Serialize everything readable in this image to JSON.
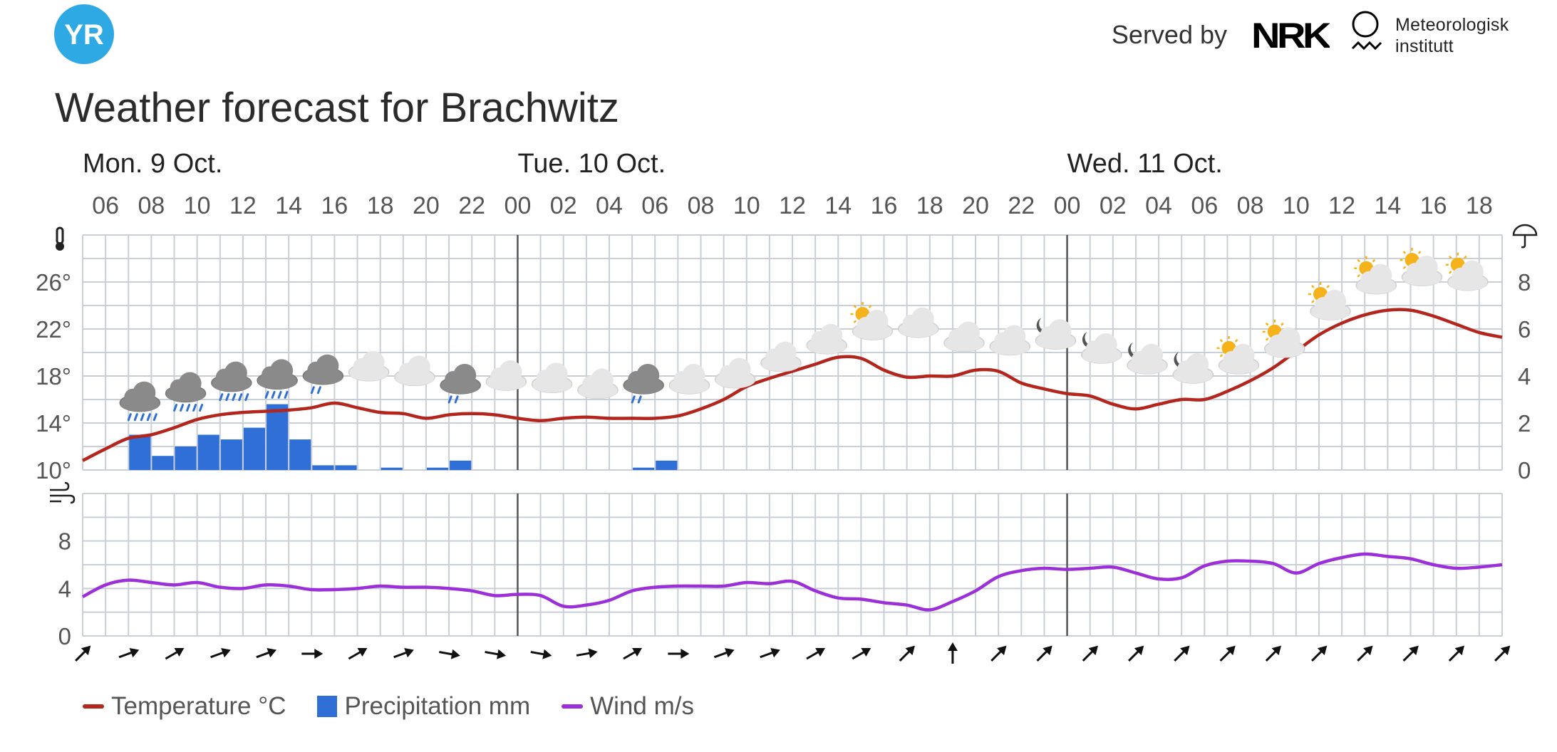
{
  "header": {
    "logo_text": "YR",
    "served_by": "Served by",
    "nrk_logo_text": "NRK",
    "met_line1": "Meteorologisk",
    "met_line2": "institutt",
    "title": "Weather forecast for Brachwitz"
  },
  "chart_data": {
    "type": "line",
    "title": "Weather forecast for Brachwitz",
    "days": [
      {
        "label": "Mon. 9 Oct.",
        "start_hour": 6
      },
      {
        "label": "Tue. 10 Oct.",
        "start_hour": 24
      },
      {
        "label": "Wed. 11 Oct.",
        "start_hour": 48
      }
    ],
    "x_hour_range": [
      5,
      67
    ],
    "x_tick_labels": [
      "06",
      "08",
      "10",
      "12",
      "14",
      "16",
      "18",
      "20",
      "22",
      "00",
      "02",
      "04",
      "06",
      "08",
      "10",
      "12",
      "14",
      "16",
      "18",
      "20",
      "22",
      "00",
      "02",
      "04",
      "06",
      "08",
      "10",
      "12",
      "14",
      "16",
      "18"
    ],
    "temperature": {
      "name": "Temperature °C",
      "color": "#b3261e",
      "ylim": [
        10,
        30
      ],
      "y_ticks": [
        "10°",
        "14°",
        "18°",
        "22°",
        "26°"
      ],
      "hours": [
        5,
        6,
        7,
        8,
        9,
        10,
        11,
        12,
        13,
        14,
        15,
        16,
        17,
        18,
        19,
        20,
        21,
        22,
        23,
        24,
        25,
        26,
        27,
        28,
        29,
        30,
        31,
        32,
        33,
        34,
        35,
        36,
        37,
        38,
        39,
        40,
        41,
        42,
        43,
        44,
        45,
        46,
        47,
        48,
        49,
        50,
        51,
        52,
        53,
        54,
        55,
        56,
        57,
        58,
        59,
        60,
        61,
        62,
        63,
        64,
        65,
        66,
        67
      ],
      "values": [
        10.8,
        11.8,
        12.7,
        13.0,
        13.6,
        14.3,
        14.7,
        14.9,
        15.0,
        15.1,
        15.3,
        15.7,
        15.3,
        14.9,
        14.8,
        14.4,
        14.7,
        14.8,
        14.7,
        14.4,
        14.2,
        14.4,
        14.5,
        14.4,
        14.4,
        14.4,
        14.6,
        15.2,
        16.0,
        17.1,
        17.8,
        18.4,
        19.0,
        19.6,
        19.5,
        18.5,
        17.9,
        18.0,
        18.0,
        18.5,
        18.4,
        17.4,
        16.9,
        16.5,
        16.3,
        15.6,
        15.2,
        15.6,
        16.0,
        16.0,
        16.7,
        17.6,
        18.7,
        20.1,
        21.5,
        22.5,
        23.2,
        23.6,
        23.6,
        23.1,
        22.4,
        21.7,
        21.3
      ]
    },
    "precipitation": {
      "name": "Precipitation mm",
      "color": "#2f6fd6",
      "ylim": [
        0,
        10
      ],
      "y_ticks": [
        "0",
        "2",
        "4",
        "6",
        "8"
      ],
      "bars": [
        {
          "hour": 7,
          "value": 1.5
        },
        {
          "hour": 8,
          "value": 0.6
        },
        {
          "hour": 9,
          "value": 1.0
        },
        {
          "hour": 10,
          "value": 1.5
        },
        {
          "hour": 11,
          "value": 1.3
        },
        {
          "hour": 12,
          "value": 1.8
        },
        {
          "hour": 13,
          "value": 2.8
        },
        {
          "hour": 14,
          "value": 1.3
        },
        {
          "hour": 15,
          "value": 0.2
        },
        {
          "hour": 16,
          "value": 0.2
        },
        {
          "hour": 18,
          "value": 0.1
        },
        {
          "hour": 20,
          "value": 0.1
        },
        {
          "hour": 21,
          "value": 0.4
        },
        {
          "hour": 29,
          "value": 0.1
        },
        {
          "hour": 30,
          "value": 0.4
        }
      ]
    },
    "wind": {
      "name": "Wind m/s",
      "color": "#9b2fd8",
      "ylim": [
        0,
        12
      ],
      "y_ticks": [
        "0",
        "4",
        "8"
      ],
      "hours": [
        5,
        6,
        7,
        8,
        9,
        10,
        11,
        12,
        13,
        14,
        15,
        16,
        17,
        18,
        19,
        20,
        21,
        22,
        23,
        24,
        25,
        26,
        27,
        28,
        29,
        30,
        31,
        32,
        33,
        34,
        35,
        36,
        37,
        38,
        39,
        40,
        41,
        42,
        43,
        44,
        45,
        46,
        47,
        48,
        49,
        50,
        51,
        52,
        53,
        54,
        55,
        56,
        57,
        58,
        59,
        60,
        61,
        62,
        63,
        64,
        65,
        66,
        67
      ],
      "values": [
        3.3,
        4.3,
        4.7,
        4.5,
        4.3,
        4.5,
        4.1,
        4.0,
        4.3,
        4.2,
        3.9,
        3.9,
        4.0,
        4.2,
        4.1,
        4.1,
        4.0,
        3.8,
        3.4,
        3.5,
        3.4,
        2.5,
        2.6,
        3.0,
        3.8,
        4.1,
        4.2,
        4.2,
        4.2,
        4.5,
        4.4,
        4.6,
        3.8,
        3.2,
        3.1,
        2.8,
        2.6,
        2.2,
        2.9,
        3.8,
        5.0,
        5.5,
        5.7,
        5.6,
        5.7,
        5.8,
        5.3,
        4.8,
        4.9,
        5.9,
        6.3,
        6.3,
        6.1,
        5.3,
        6.1,
        6.6,
        6.9,
        6.7,
        6.5,
        6.0,
        5.7,
        5.8,
        6.0
      ]
    },
    "wind_direction_deg": [
      45,
      70,
      60,
      70,
      70,
      90,
      60,
      70,
      100,
      100,
      100,
      80,
      60,
      90,
      70,
      70,
      60,
      60,
      45,
      0,
      45,
      45,
      45,
      45,
      45,
      45,
      45,
      45,
      45,
      45,
      45,
      45
    ],
    "weather_icons": [
      {
        "hour": 7,
        "temp": 16.2,
        "icon": "heavy-rain-icon"
      },
      {
        "hour": 9,
        "temp": 17.0,
        "icon": "heavy-rain-icon"
      },
      {
        "hour": 11,
        "temp": 17.9,
        "icon": "heavy-rain-icon"
      },
      {
        "hour": 13,
        "temp": 18.1,
        "icon": "rain-icon"
      },
      {
        "hour": 15,
        "temp": 18.5,
        "icon": "light-rain-icon"
      },
      {
        "hour": 17,
        "temp": 18.8,
        "icon": "cloudy-icon"
      },
      {
        "hour": 19,
        "temp": 18.4,
        "icon": "cloudy-icon"
      },
      {
        "hour": 21,
        "temp": 17.7,
        "icon": "light-rain-icon"
      },
      {
        "hour": 23,
        "temp": 18.0,
        "icon": "cloudy-icon"
      },
      {
        "hour": 25,
        "temp": 17.8,
        "icon": "cloudy-icon"
      },
      {
        "hour": 27,
        "temp": 17.3,
        "icon": "cloudy-icon"
      },
      {
        "hour": 29,
        "temp": 17.7,
        "icon": "light-rain-icon"
      },
      {
        "hour": 31,
        "temp": 17.7,
        "icon": "cloudy-icon"
      },
      {
        "hour": 33,
        "temp": 18.2,
        "icon": "cloudy-icon"
      },
      {
        "hour": 35,
        "temp": 19.6,
        "icon": "cloudy-icon"
      },
      {
        "hour": 37,
        "temp": 21.1,
        "icon": "cloudy-icon"
      },
      {
        "hour": 39,
        "temp": 22.3,
        "icon": "partly-cloudy-day-icon"
      },
      {
        "hour": 41,
        "temp": 22.5,
        "icon": "cloudy-icon"
      },
      {
        "hour": 43,
        "temp": 21.3,
        "icon": "cloudy-icon"
      },
      {
        "hour": 45,
        "temp": 21.0,
        "icon": "cloudy-icon"
      },
      {
        "hour": 47,
        "temp": 21.5,
        "icon": "partly-cloudy-night-icon"
      },
      {
        "hour": 49,
        "temp": 20.3,
        "icon": "partly-cloudy-night-icon"
      },
      {
        "hour": 51,
        "temp": 19.4,
        "icon": "partly-cloudy-night-icon"
      },
      {
        "hour": 53,
        "temp": 18.6,
        "icon": "partly-cloudy-night-icon"
      },
      {
        "hour": 55,
        "temp": 19.4,
        "icon": "partly-cloudy-day-icon"
      },
      {
        "hour": 57,
        "temp": 20.8,
        "icon": "partly-cloudy-day-icon"
      },
      {
        "hour": 59,
        "temp": 24.0,
        "icon": "partly-cloudy-day-icon"
      },
      {
        "hour": 61,
        "temp": 26.2,
        "icon": "partly-cloudy-day-icon"
      },
      {
        "hour": 63,
        "temp": 26.9,
        "icon": "partly-cloudy-day-icon"
      },
      {
        "hour": 65,
        "temp": 26.5,
        "icon": "partly-cloudy-day-icon"
      }
    ],
    "grid": true
  },
  "legend": {
    "temperature": "Temperature °C",
    "precipitation": "Precipitation mm",
    "wind": "Wind m/s"
  },
  "colors": {
    "temperature": "#b3261e",
    "precipitation": "#2f6fd6",
    "wind": "#9b2fd8",
    "grid": "#c9cfd6",
    "brand": "#2fa9e4"
  }
}
